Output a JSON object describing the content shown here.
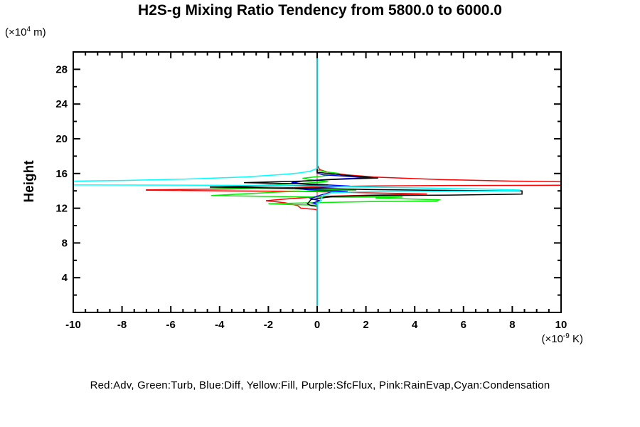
{
  "header": {
    "title": "H2S-g Mixing Ratio Tendency from 5800.0 to 6000.0"
  },
  "axes": {
    "y_label": "Height",
    "y_unit": {
      "prefix": "(×10",
      "exponent": "4",
      "suffix": " m)"
    },
    "x_unit": {
      "prefix": "(×10",
      "exponent": "-9",
      "suffix": " K)"
    }
  },
  "legend": {
    "text": "Red:Adv, Green:Turb, Blue:Diff, Yellow:Fill, Purple:SfcFlux, Pink:RainEvap,Cyan:Condensation"
  },
  "chart_data": {
    "type": "line",
    "orientation": "vertical-profile (x = tendency value, y = height)",
    "title": "H2S-g Mixing Ratio Tendency from 5800.0 to 6000.0",
    "xlabel": "(×10^-9 K)",
    "ylabel": "Height (×10^4 m)",
    "xlim": [
      -10,
      10
    ],
    "ylim": [
      0,
      30
    ],
    "x_major_ticks": [
      -10,
      -8,
      -6,
      -4,
      -2,
      0,
      2,
      4,
      6,
      8,
      10
    ],
    "x_tick_labels": [
      "-10",
      "-8",
      "-6",
      "-4",
      "-2",
      "0",
      "2",
      "4",
      "6",
      "8",
      "10"
    ],
    "x_minor_step": 0.5,
    "y_major_ticks": [
      4,
      8,
      12,
      16,
      20,
      24,
      28
    ],
    "y_tick_labels": [
      "4",
      "8",
      "12",
      "16",
      "20",
      "24",
      "28"
    ],
    "y_minor_step": 2,
    "grid": "off",
    "zero_line_x": 0,
    "legend_position": "bottom text line",
    "draw_order": [
      "Fill",
      "SfcFlux",
      "RainEvap",
      "Adv",
      "Turb",
      "Diff",
      "Net",
      "Condensation"
    ],
    "series": [
      {
        "name": "Adv",
        "legend_label": "Red:Adv",
        "color": "#ff0000",
        "paths": [
          [
            [
              0,
              30
            ],
            [
              0,
              17.0
            ],
            [
              0.1,
              16.45
            ],
            [
              0.5,
              16.1
            ],
            [
              1.2,
              15.85
            ],
            [
              2.3,
              15.6
            ],
            [
              5,
              15.3
            ],
            [
              8,
              15.12
            ],
            [
              10,
              15.05
            ]
          ],
          [
            [
              10,
              14.65
            ],
            [
              6,
              14.62
            ],
            [
              2.5,
              14.57
            ],
            [
              0.3,
              14.5
            ],
            [
              -1,
              14.38
            ],
            [
              -3.5,
              14.22
            ],
            [
              -7,
              14.12
            ],
            [
              -7,
              14.07
            ],
            [
              -3.5,
              14.0
            ],
            [
              -1,
              13.95
            ],
            [
              0.6,
              13.88
            ],
            [
              2.5,
              13.75
            ],
            [
              4.5,
              13.65
            ],
            [
              2.2,
              13.52
            ],
            [
              0.4,
              13.38
            ],
            [
              -1,
              13.12
            ],
            [
              -2.1,
              12.87
            ],
            [
              -1.3,
              12.62
            ],
            [
              -0.8,
              12.3
            ],
            [
              -0.67,
              12.02
            ],
            [
              -0.35,
              11.93
            ],
            [
              -0.1,
              11.88
            ],
            [
              0,
              11.8
            ],
            [
              0,
              0
            ]
          ]
        ],
        "off_scale_right": {
          "between_heights": [
            14.65,
            15.05
          ],
          "clipped_at_x": 10
        }
      },
      {
        "name": "Turb",
        "legend_label": "Green:Turb",
        "color": "#00ee00",
        "paths": [
          [
            [
              0,
              30
            ],
            [
              0,
              16.4
            ],
            [
              0.35,
              16.2
            ],
            [
              0.9,
              16.0
            ],
            [
              0.4,
              15.75
            ],
            [
              -0.6,
              15.45
            ],
            [
              -0.2,
              15.25
            ],
            [
              0.45,
              15.05
            ],
            [
              -0.9,
              14.82
            ],
            [
              -2.5,
              14.62
            ],
            [
              -4.4,
              14.38
            ],
            [
              -2.2,
              14.27
            ],
            [
              0.4,
              14.17
            ],
            [
              1.6,
              14.07
            ],
            [
              -1.2,
              13.92
            ],
            [
              -4.35,
              13.47
            ],
            [
              -2.2,
              13.37
            ],
            [
              0.4,
              13.27
            ],
            [
              3.5,
              13.3
            ],
            [
              2.4,
              13.17
            ],
            [
              5.0,
              12.97
            ],
            [
              4.9,
              12.82
            ],
            [
              2.2,
              12.77
            ],
            [
              0.4,
              12.67
            ],
            [
              -2.0,
              12.52
            ],
            [
              -1.1,
              12.43
            ],
            [
              0,
              12.35
            ],
            [
              0,
              0
            ]
          ]
        ]
      },
      {
        "name": "Diff",
        "legend_label": "Blue:Diff",
        "color": "#0000ff",
        "paths": [
          [
            [
              0,
              30
            ],
            [
              0,
              16.05
            ],
            [
              0.25,
              15.85
            ],
            [
              1.1,
              15.7
            ],
            [
              2.2,
              15.52
            ],
            [
              1.1,
              15.4
            ],
            [
              0.25,
              15.28
            ],
            [
              -0.55,
              15.15
            ],
            [
              -1.05,
              14.95
            ],
            [
              -0.45,
              14.8
            ],
            [
              0.45,
              14.68
            ],
            [
              1.35,
              14.55
            ],
            [
              0.45,
              14.43
            ],
            [
              -0.9,
              14.28
            ],
            [
              -0.35,
              14.13
            ],
            [
              0.55,
              14.03
            ],
            [
              1.25,
              13.93
            ],
            [
              0.5,
              13.78
            ],
            [
              0.12,
              13.5
            ],
            [
              -0.28,
              13.1
            ],
            [
              0.12,
              12.88
            ],
            [
              -0.18,
              12.6
            ],
            [
              0,
              12.45
            ],
            [
              0,
              0
            ]
          ]
        ]
      },
      {
        "name": "Fill",
        "legend_label": "Yellow:Fill",
        "color": "#ffff00",
        "paths": [
          [
            [
              0,
              0
            ],
            [
              0,
              30
            ]
          ]
        ],
        "note": "zero everywhere; coincides with zero line, hidden beneath later-drawn lines"
      },
      {
        "name": "SfcFlux",
        "legend_label": "Purple:SfcFlux",
        "color": "#a020f0",
        "paths": [
          [
            [
              0,
              0
            ],
            [
              0,
              30
            ]
          ]
        ],
        "note": "zero everywhere; coincides with zero line, hidden beneath later-drawn lines"
      },
      {
        "name": "RainEvap",
        "legend_label": "Pink:RainEvap",
        "color": "#ff8888",
        "paths": [
          [
            [
              0,
              0
            ],
            [
              0,
              30
            ]
          ]
        ],
        "note": "zero everywhere; visible as pink zero line between heights ~12.5 and ~16.6 where the cyan curve departs from zero"
      },
      {
        "name": "Net",
        "legend_label": "(black, not listed in legend)",
        "color": "#000000",
        "paths": [
          [
            [
              0,
              30
            ],
            [
              0,
              16.15
            ],
            [
              0.45,
              16.0
            ],
            [
              1.5,
              15.7
            ],
            [
              2.5,
              15.48
            ],
            [
              0.6,
              15.3
            ],
            [
              -0.35,
              15.15
            ],
            [
              -3.0,
              14.95
            ],
            [
              -0.6,
              14.8
            ],
            [
              0.45,
              14.68
            ],
            [
              -1.6,
              14.58
            ],
            [
              -4.4,
              14.45
            ],
            [
              -2.2,
              14.35
            ],
            [
              0.5,
              14.25
            ],
            [
              2.2,
              14.15
            ],
            [
              4.5,
              14.08
            ],
            [
              8.4,
              14.0
            ],
            [
              8.4,
              13.62
            ],
            [
              5.5,
              13.52
            ],
            [
              2.2,
              13.45
            ],
            [
              0.6,
              13.35
            ],
            [
              -0.25,
              13.0
            ],
            [
              -0.4,
              12.5
            ],
            [
              -0.25,
              12.3
            ],
            [
              0,
              12.22
            ],
            [
              0,
              0
            ]
          ]
        ]
      },
      {
        "name": "Condensation",
        "legend_label": "Cyan:Condensation",
        "color": "#00ffff",
        "paths": [
          [
            [
              0,
              30
            ],
            [
              0,
              16.6
            ],
            [
              -0.3,
              16.25
            ],
            [
              -0.8,
              16.05
            ],
            [
              -1.6,
              15.85
            ],
            [
              -3,
              15.6
            ],
            [
              -5.5,
              15.35
            ],
            [
              -8,
              15.2
            ],
            [
              -10,
              15.12
            ]
          ],
          [
            [
              -10,
              14.68
            ],
            [
              -6,
              14.66
            ],
            [
              -2,
              14.62
            ],
            [
              0.5,
              14.55
            ],
            [
              2.5,
              14.42
            ],
            [
              5,
              14.3
            ],
            [
              7,
              14.2
            ],
            [
              8.3,
              14.1
            ],
            [
              8.3,
              14.02
            ],
            [
              5,
              13.95
            ],
            [
              2,
              13.9
            ],
            [
              0.6,
              13.8
            ],
            [
              0.25,
              13.5
            ],
            [
              0.15,
              13.0
            ],
            [
              0.1,
              12.7
            ],
            [
              0,
              12.5
            ],
            [
              0,
              0
            ]
          ]
        ],
        "off_scale_left": {
          "between_heights": [
            14.68,
            15.12
          ],
          "clipped_at_x": -10
        }
      }
    ]
  }
}
